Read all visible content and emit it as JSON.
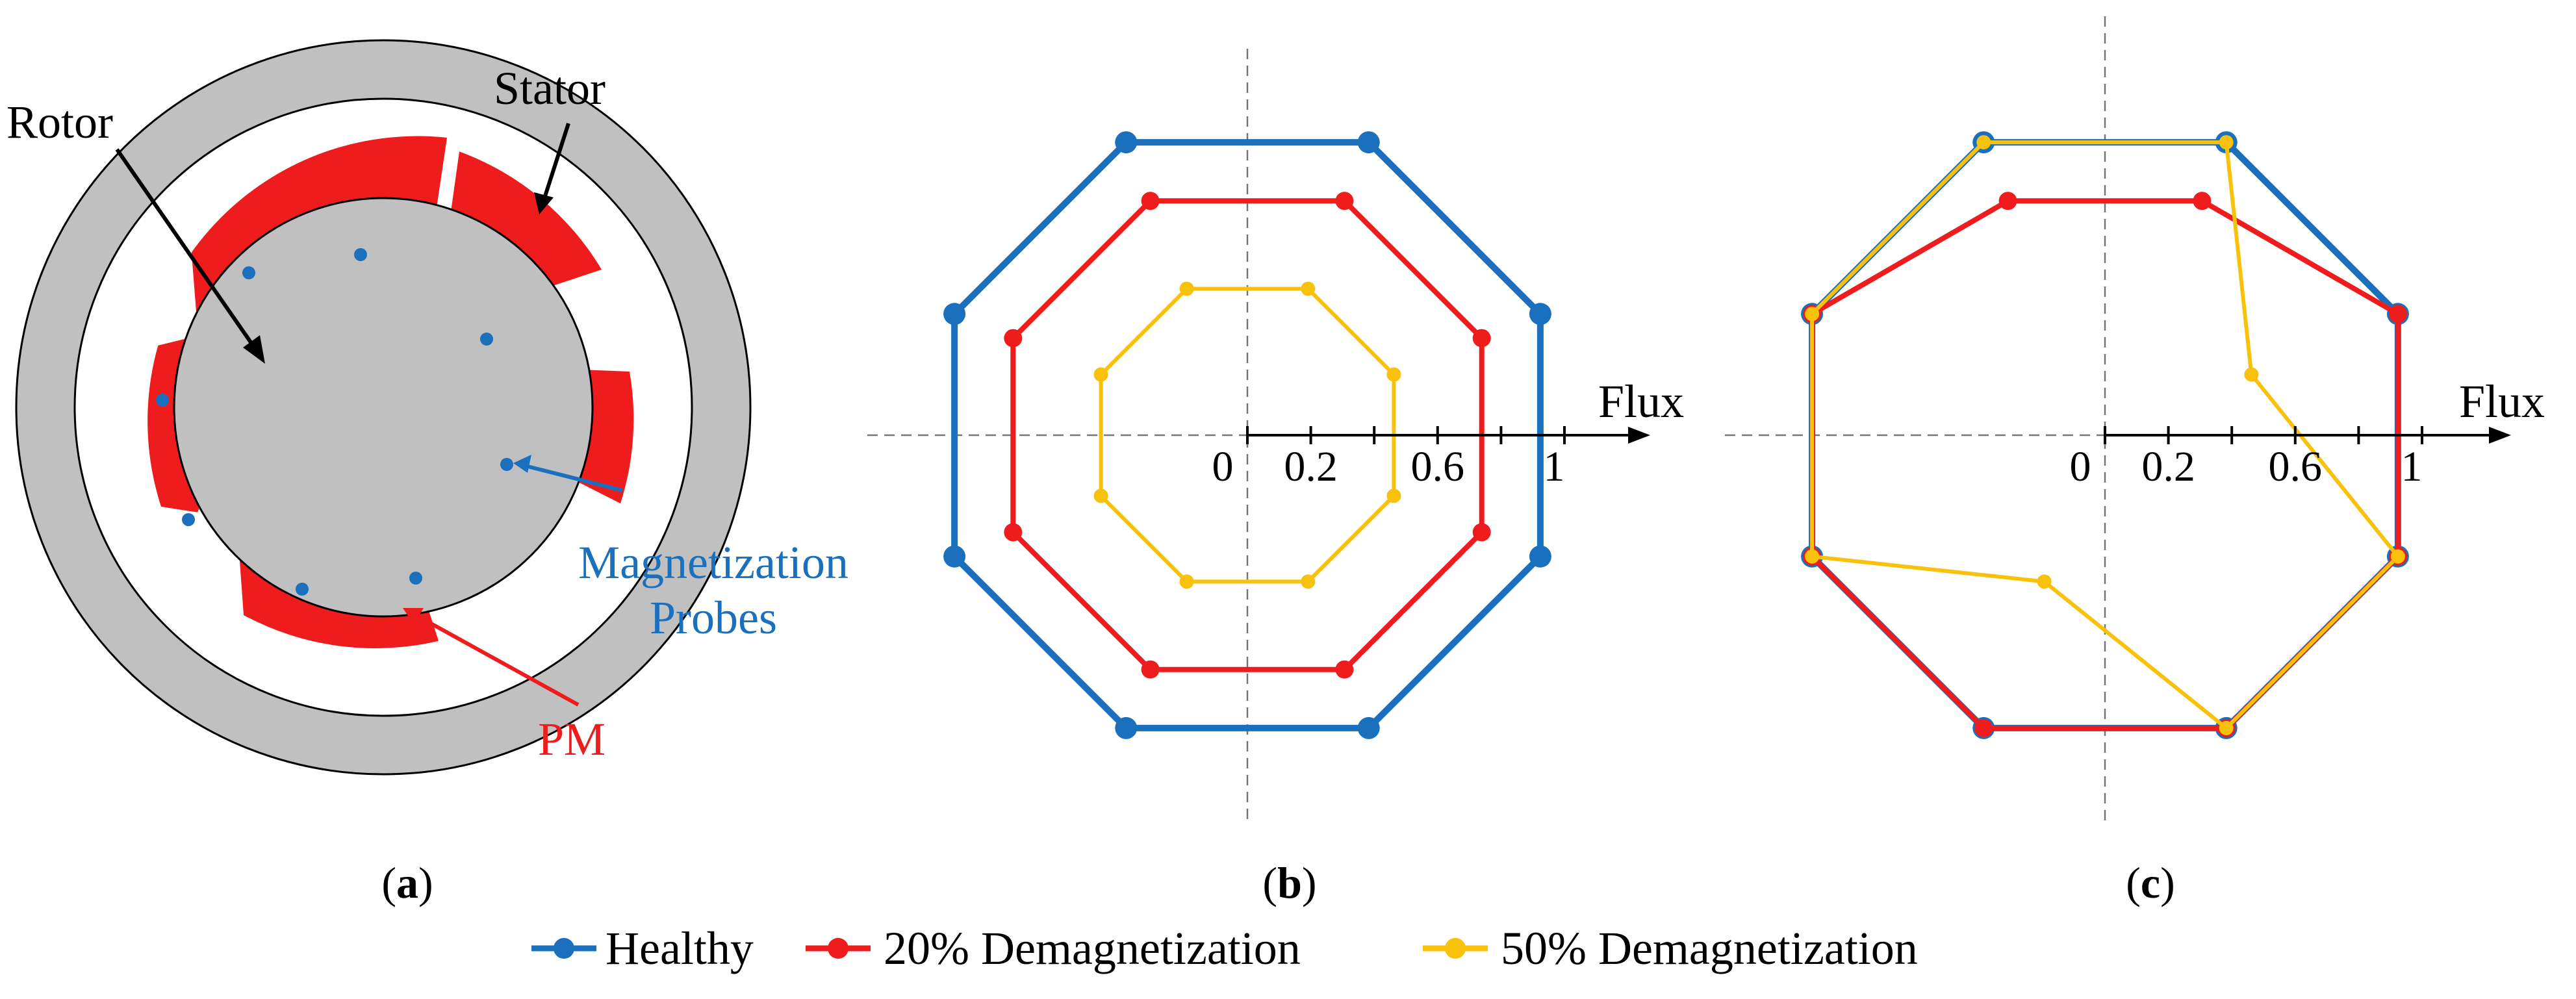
{
  "panel_a": {
    "rotor_label": "Rotor",
    "stator_label": "Stator",
    "probes_label_line1": "Magnetization",
    "probes_label_line2": "Probes",
    "pm_label": "PM",
    "caption_open": "(",
    "caption_letter": "a",
    "caption_close": ")"
  },
  "panel_b": {
    "caption_open": "(",
    "caption_letter": "b",
    "caption_close": ")",
    "axis_label": "Flux",
    "ticks": [
      "0",
      "0.2",
      "0.6",
      "1"
    ]
  },
  "panel_c": {
    "caption_open": "(",
    "caption_letter": "c",
    "caption_close": ")",
    "axis_label": "Flux",
    "ticks": [
      "0",
      "0.2",
      "0.6",
      "1"
    ]
  },
  "legend": {
    "healthy": "Healthy",
    "demag20": "20% Demagnetization",
    "demag50": "50% Demagnetization"
  },
  "colors": {
    "healthy": "#1a70bd",
    "demag20": "#ee1c1c",
    "demag50": "#f8c20c",
    "gray": "#c0c0c0",
    "probe_text": "#1a70bd",
    "pm_text": "#ee1c1c"
  },
  "chart_data": [
    {
      "type": "radar",
      "panel": "b",
      "directions": 8,
      "axis_label": "Flux",
      "tick_values": [
        0,
        0.2,
        0.4,
        0.6,
        0.8,
        1
      ],
      "tick_labels": [
        "0",
        "0.2",
        "0.6",
        "1"
      ],
      "series": [
        {
          "name": "Healthy",
          "values": [
            1,
            1,
            1,
            1,
            1,
            1,
            1,
            1
          ]
        },
        {
          "name": "20% Demagnetization",
          "values": [
            0.8,
            0.8,
            0.8,
            0.8,
            0.8,
            0.8,
            0.8,
            0.8
          ]
        },
        {
          "name": "50% Demagnetization",
          "values": [
            0.5,
            0.5,
            0.5,
            0.5,
            0.5,
            0.5,
            0.5,
            0.5
          ]
        }
      ]
    },
    {
      "type": "radar",
      "panel": "c",
      "directions": 8,
      "axis_label": "Flux",
      "tick_values": [
        0,
        0.2,
        0.4,
        0.6,
        0.8,
        1
      ],
      "tick_labels": [
        "0",
        "0.2",
        "0.6",
        "1"
      ],
      "series": [
        {
          "name": "Healthy",
          "values": [
            1,
            1,
            1,
            1,
            1,
            1,
            1,
            1
          ]
        },
        {
          "name": "20% Demagnetization",
          "values": [
            1,
            0.8,
            0.8,
            1,
            1,
            1,
            1,
            1
          ]
        },
        {
          "name": "50% Demagnetization",
          "values": [
            0.5,
            1,
            1,
            1,
            1,
            0.5,
            1,
            1
          ]
        }
      ]
    }
  ]
}
